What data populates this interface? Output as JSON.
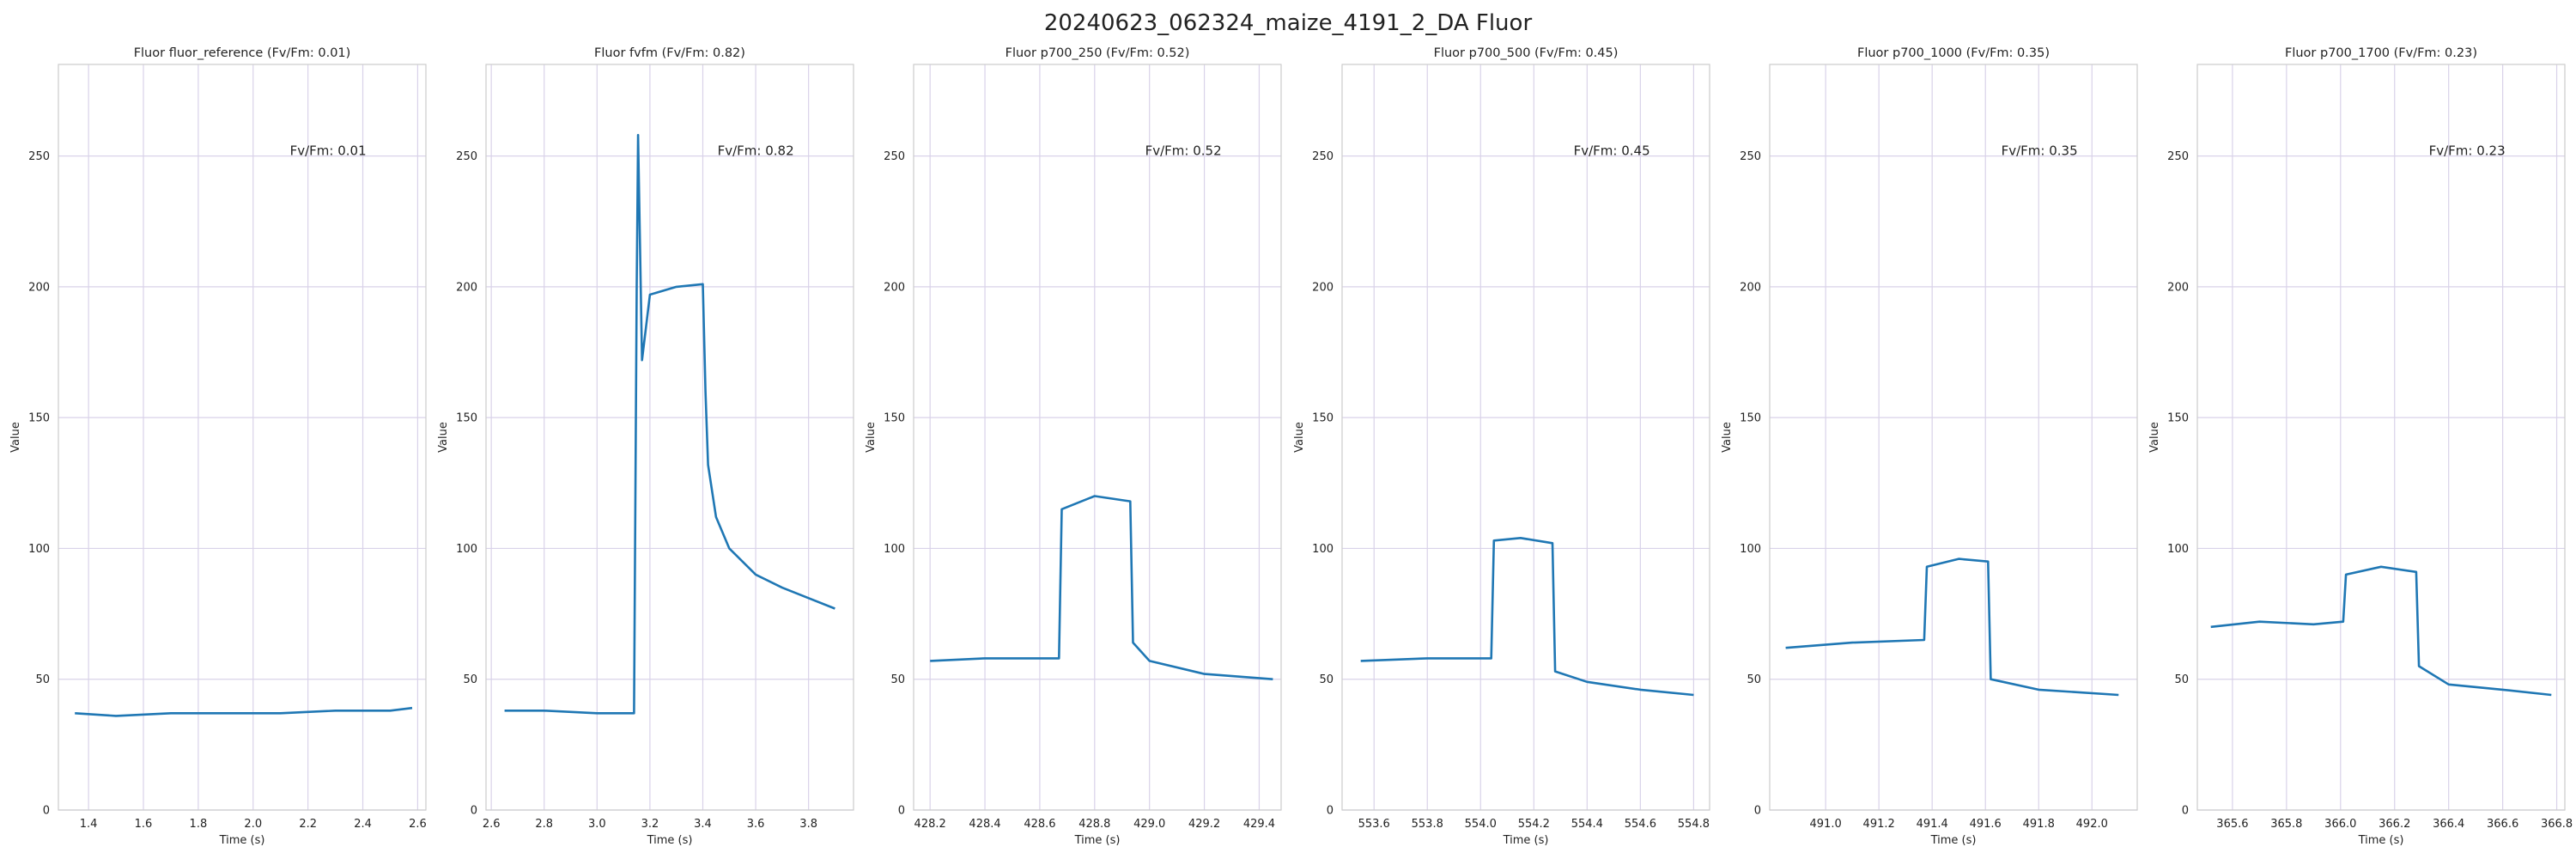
{
  "title": "20240623_062324_maize_4191_2_DA Fluor",
  "colors": {
    "line": "#1f77b4",
    "grid": "#d9d2e9",
    "spine": "#cccccc",
    "text": "#222222"
  },
  "chart_data": [
    {
      "type": "line",
      "title": "Fluor fluor_reference (Fv/Fm: 0.01)",
      "annotation": "Fv/Fm: 0.01",
      "xlabel": "Time (s)",
      "ylabel": "Value",
      "xlim": [
        1.29,
        2.63
      ],
      "ylim": [
        0,
        285
      ],
      "xticks": [
        1.4,
        1.6,
        1.8,
        2.0,
        2.2,
        2.4,
        2.6
      ],
      "xtick_labels": [
        "1.4",
        "1.6",
        "1.8",
        "2.0",
        "2.2",
        "2.4",
        "2.6"
      ],
      "yticks": [
        0,
        50,
        100,
        150,
        200,
        250
      ],
      "ytick_labels": [
        "0",
        "50",
        "100",
        "150",
        "200",
        "250"
      ],
      "grid": true,
      "series": [
        {
          "x": [
            1.35,
            1.5,
            1.7,
            1.9,
            2.1,
            2.3,
            2.5,
            2.58
          ],
          "y": [
            37,
            36,
            37,
            37,
            37,
            38,
            38,
            39
          ]
        }
      ]
    },
    {
      "type": "line",
      "title": "Fluor fvfm (Fv/Fm: 0.82)",
      "annotation": "Fv/Fm: 0.82",
      "xlabel": "Time (s)",
      "ylabel": "Value",
      "xlim": [
        2.58,
        3.97
      ],
      "ylim": [
        0,
        285
      ],
      "xticks": [
        2.6,
        2.8,
        3.0,
        3.2,
        3.4,
        3.6,
        3.8
      ],
      "xtick_labels": [
        "2.6",
        "2.8",
        "3.0",
        "3.2",
        "3.4",
        "3.6",
        "3.8"
      ],
      "yticks": [
        0,
        50,
        100,
        150,
        200,
        250
      ],
      "ytick_labels": [
        "0",
        "50",
        "100",
        "150",
        "200",
        "250"
      ],
      "grid": true,
      "series": [
        {
          "x": [
            2.65,
            2.8,
            3.0,
            3.14,
            3.15,
            3.155,
            3.17,
            3.2,
            3.3,
            3.4,
            3.41,
            3.42,
            3.45,
            3.5,
            3.6,
            3.7,
            3.8,
            3.9
          ],
          "y": [
            38,
            38,
            37,
            37,
            200,
            258,
            172,
            197,
            200,
            201,
            160,
            132,
            112,
            100,
            90,
            85,
            81,
            77
          ]
        }
      ]
    },
    {
      "type": "line",
      "title": "Fluor p700_250 (Fv/Fm: 0.52)",
      "annotation": "Fv/Fm: 0.52",
      "xlabel": "Time (s)",
      "ylabel": "Value",
      "xlim": [
        428.14,
        429.48
      ],
      "ylim": [
        0,
        285
      ],
      "xticks": [
        428.2,
        428.4,
        428.6,
        428.8,
        429.0,
        429.2,
        429.4
      ],
      "xtick_labels": [
        "428.2",
        "428.4",
        "428.6",
        "428.8",
        "429.0",
        "429.2",
        "429.4"
      ],
      "yticks": [
        0,
        50,
        100,
        150,
        200,
        250
      ],
      "ytick_labels": [
        "0",
        "50",
        "100",
        "150",
        "200",
        "250"
      ],
      "grid": true,
      "series": [
        {
          "x": [
            428.2,
            428.4,
            428.67,
            428.68,
            428.8,
            428.93,
            428.94,
            429.0,
            429.2,
            429.45
          ],
          "y": [
            57,
            58,
            58,
            115,
            120,
            118,
            64,
            57,
            52,
            50
          ]
        }
      ]
    },
    {
      "type": "line",
      "title": "Fluor p700_500 (Fv/Fm: 0.45)",
      "annotation": "Fv/Fm: 0.45",
      "xlabel": "Time (s)",
      "ylabel": "Value",
      "xlim": [
        553.48,
        554.86
      ],
      "ylim": [
        0,
        285
      ],
      "xticks": [
        553.6,
        553.8,
        554.0,
        554.2,
        554.4,
        554.6,
        554.8
      ],
      "xtick_labels": [
        "553.6",
        "553.8",
        "554.0",
        "554.2",
        "554.4",
        "554.6",
        "554.8"
      ],
      "yticks": [
        0,
        50,
        100,
        150,
        200,
        250
      ],
      "ytick_labels": [
        "0",
        "50",
        "100",
        "150",
        "200",
        "250"
      ],
      "grid": true,
      "series": [
        {
          "x": [
            553.55,
            553.8,
            554.04,
            554.05,
            554.15,
            554.27,
            554.28,
            554.4,
            554.6,
            554.8
          ],
          "y": [
            57,
            58,
            58,
            103,
            104,
            102,
            53,
            49,
            46,
            44
          ]
        }
      ]
    },
    {
      "type": "line",
      "title": "Fluor p700_1000 (Fv/Fm: 0.35)",
      "annotation": "Fv/Fm: 0.35",
      "xlabel": "Time (s)",
      "ylabel": "Value",
      "xlim": [
        490.79,
        492.17
      ],
      "ylim": [
        0,
        285
      ],
      "xticks": [
        491.0,
        491.2,
        491.4,
        491.6,
        491.8,
        492.0
      ],
      "xtick_labels": [
        "491.0",
        "491.2",
        "491.4",
        "491.6",
        "491.8",
        "492.0"
      ],
      "yticks": [
        0,
        50,
        100,
        150,
        200,
        250
      ],
      "ytick_labels": [
        "0",
        "50",
        "100",
        "150",
        "200",
        "250"
      ],
      "grid": true,
      "series": [
        {
          "x": [
            490.85,
            491.1,
            491.37,
            491.38,
            491.5,
            491.61,
            491.62,
            491.8,
            492.1
          ],
          "y": [
            62,
            64,
            65,
            93,
            96,
            95,
            50,
            46,
            44
          ]
        }
      ]
    },
    {
      "type": "line",
      "title": "Fluor p700_1700 (Fv/Fm: 0.23)",
      "annotation": "Fv/Fm: 0.23",
      "xlabel": "Time (s)",
      "ylabel": "Value",
      "xlim": [
        365.47,
        366.83
      ],
      "ylim": [
        0,
        285
      ],
      "xticks": [
        365.6,
        365.8,
        366.0,
        366.2,
        366.4,
        366.6,
        366.8
      ],
      "xtick_labels": [
        "365.6",
        "365.8",
        "366.0",
        "366.2",
        "366.4",
        "366.6",
        "366.8"
      ],
      "yticks": [
        0,
        50,
        100,
        150,
        200,
        250
      ],
      "ytick_labels": [
        "0",
        "50",
        "100",
        "150",
        "200",
        "250"
      ],
      "grid": true,
      "series": [
        {
          "x": [
            365.52,
            365.7,
            365.9,
            366.01,
            366.02,
            366.15,
            366.28,
            366.29,
            366.4,
            366.6,
            366.78
          ],
          "y": [
            70,
            72,
            71,
            72,
            90,
            93,
            91,
            55,
            48,
            46,
            44
          ]
        }
      ]
    }
  ]
}
